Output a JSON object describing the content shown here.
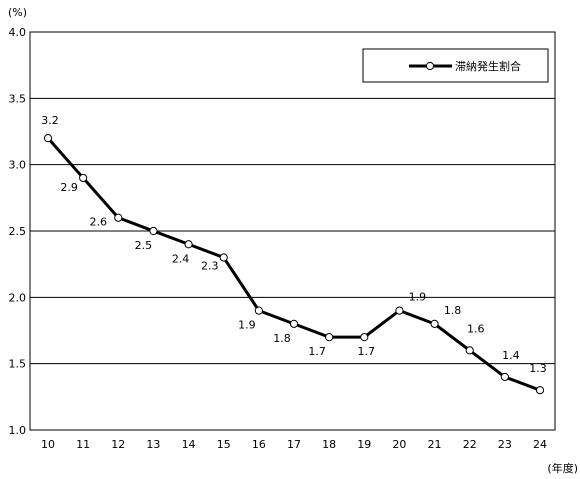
{
  "chart_data": {
    "type": "line",
    "title": "",
    "y_unit_label": "(%)",
    "x_unit_label": "(年度)",
    "x": [
      "10",
      "11",
      "12",
      "13",
      "14",
      "15",
      "16",
      "17",
      "18",
      "19",
      "20",
      "21",
      "22",
      "23",
      "24"
    ],
    "series": [
      {
        "name": "滞納発生割合",
        "values": [
          3.2,
          2.9,
          2.6,
          2.5,
          2.4,
          2.3,
          1.9,
          1.8,
          1.7,
          1.7,
          1.9,
          1.8,
          1.6,
          1.4,
          1.3
        ],
        "data_labels": [
          "3.2",
          "2.9",
          "2.6",
          "2.5",
          "2.4",
          "2.3",
          "1.9",
          "1.8",
          "1.7",
          "1.7",
          "1.9",
          "1.8",
          "1.6",
          "1.4",
          "1.3"
        ]
      }
    ],
    "ylim": [
      1.0,
      4.0
    ],
    "y_ticks": [
      "1.0",
      "1.5",
      "2.0",
      "2.5",
      "3.0",
      "3.5",
      "4.0"
    ],
    "grid": true,
    "legend_position": "top-right",
    "colors": {
      "line": "#000000",
      "marker_fill": "#ffffff",
      "grid": "#000000"
    }
  }
}
